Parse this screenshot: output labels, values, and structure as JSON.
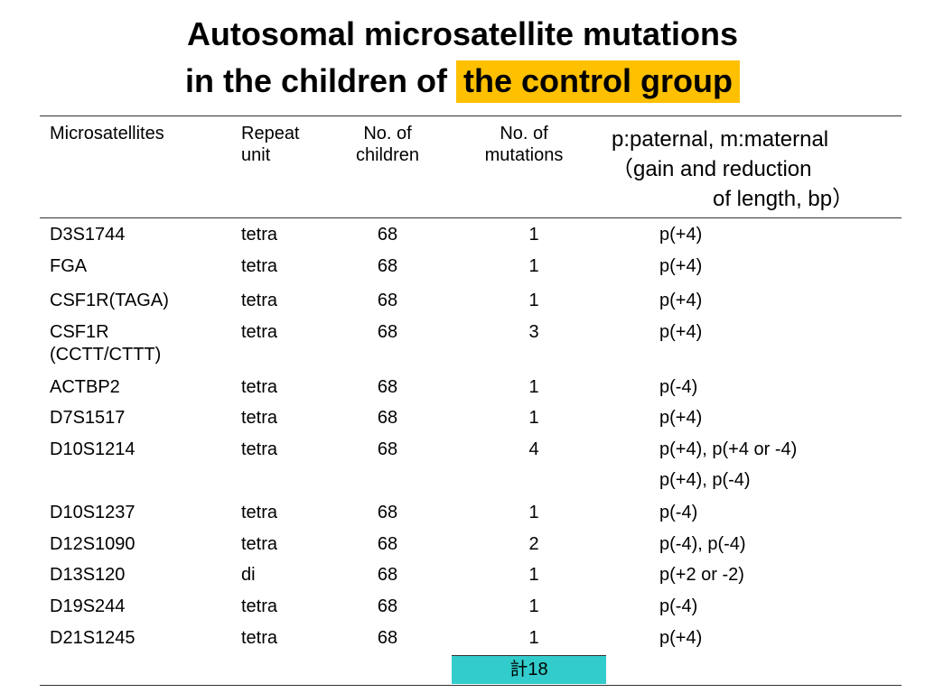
{
  "title": {
    "line1": "Autosomal microsatellite mutations",
    "line2_prefix": "in the children of ",
    "line2_highlight": "the control group",
    "highlight_color": "#ffc000"
  },
  "table": {
    "headers": {
      "microsatellites": "Microsatellites",
      "repeat_unit_1": "Repeat",
      "repeat_unit_2": "unit",
      "children_1": "No. of",
      "children_2": "children",
      "mutations_1": "No. of",
      "mutations_2": "mutations",
      "note_1": "p:paternal, m:maternal",
      "note_2": "（gain and reduction",
      "note_3": "of length, bp）"
    },
    "rows": [
      {
        "ms": "D3S1744",
        "ms2": "",
        "repeat": "tetra",
        "children": "68",
        "mutations": "1",
        "note": "p(+4)"
      },
      {
        "ms": "FGA",
        "ms2": "",
        "repeat": "tetra",
        "children": "68",
        "mutations": "1",
        "note": "p(+4)"
      },
      {
        "ms": "CSF1R(TAGA)",
        "ms2": "",
        "repeat": "tetra",
        "children": "68",
        "mutations": "1",
        "note": "p(+4)"
      },
      {
        "ms": "CSF1R",
        "ms2": "(CCTT/CTTT)",
        "repeat": "tetra",
        "children": "68",
        "mutations": "3",
        "note": "p(+4)"
      },
      {
        "ms": "ACTBP2",
        "ms2": "",
        "repeat": "tetra",
        "children": "68",
        "mutations": "1",
        "note": "p(-4)"
      },
      {
        "ms": "D7S1517",
        "ms2": "",
        "repeat": "tetra",
        "children": "68",
        "mutations": "1",
        "note": "p(+4)"
      },
      {
        "ms": "D10S1214",
        "ms2": "",
        "repeat": "tetra",
        "children": "68",
        "mutations": "4",
        "note": "p(+4), p(+4 or -4)",
        "note2": "p(+4), p(-4)"
      },
      {
        "ms": "D10S1237",
        "ms2": "",
        "repeat": "tetra",
        "children": "68",
        "mutations": "1",
        "note": "p(-4)"
      },
      {
        "ms": "D12S1090",
        "ms2": "",
        "repeat": "tetra",
        "children": "68",
        "mutations": "2",
        "note": "p(-4), p(-4)"
      },
      {
        "ms": "D13S120",
        "ms2": "",
        "repeat": "di",
        "children": "68",
        "mutations": "1",
        "note": "p(+2 or -2)"
      },
      {
        "ms": "D19S244",
        "ms2": "",
        "repeat": "tetra",
        "children": "68",
        "mutations": "1",
        "note": "p(-4)"
      },
      {
        "ms": "D21S1245",
        "ms2": "",
        "repeat": "tetra",
        "children": "68",
        "mutations": "1",
        "note": "p(+4)"
      }
    ],
    "total": "計18",
    "total_color": "#33cccc"
  }
}
